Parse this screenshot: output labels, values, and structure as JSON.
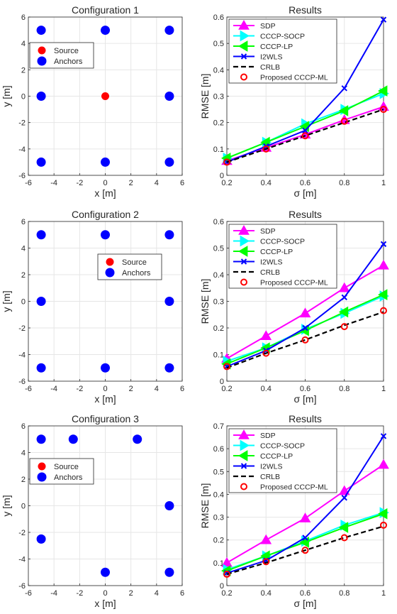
{
  "colors": {
    "source": "#ff0000",
    "anchors": "#0000ff",
    "SDP": "#ff00ff",
    "CCCP-SOCP": "#00ffff",
    "CCCP-LP": "#00ff00",
    "I2WLS": "#0000ff",
    "CRLB": "#000000",
    "Proposed CCCP-ML": "#ff0000"
  },
  "chart_data": [
    {
      "type": "scatter",
      "title": "Configuration 1",
      "xlabel": "x [m]",
      "ylabel": "y [m]",
      "xlim": [
        -6,
        6
      ],
      "ylim": [
        -6,
        6
      ],
      "xticks": [
        "-6",
        "-4",
        "-2",
        "0",
        "2",
        "4",
        "6"
      ],
      "yticks": [
        "-6",
        "-4",
        "-2",
        "0",
        "2",
        "4",
        "6"
      ],
      "grid": true,
      "legend_position": "upper-left",
      "legend": [
        "Source",
        "Anchors"
      ],
      "source": [
        [
          0,
          0
        ]
      ],
      "anchors": [
        [
          -5,
          5
        ],
        [
          0,
          5
        ],
        [
          5,
          5
        ],
        [
          -5,
          0
        ],
        [
          5,
          0
        ],
        [
          -5,
          -5
        ],
        [
          0,
          -5
        ],
        [
          5,
          -5
        ]
      ]
    },
    {
      "type": "line",
      "title": "Results",
      "xlabel": "σ [m]",
      "ylabel": "RMSE [m]",
      "xlim": [
        0.2,
        1
      ],
      "ylim": [
        0,
        0.6
      ],
      "xticks": [
        "0.2",
        "0.4",
        "0.6",
        "0.8",
        "1"
      ],
      "yticks": [
        "0",
        "0.1",
        "0.2",
        "0.3",
        "0.4",
        "0.5",
        "0.6"
      ],
      "grid": true,
      "legend_position": "upper-left",
      "x": [
        0.2,
        0.4,
        0.6,
        0.8,
        1.0
      ],
      "series": [
        {
          "name": "SDP",
          "values": [
            0.055,
            0.105,
            0.155,
            0.21,
            0.26
          ]
        },
        {
          "name": "CCCP-SOCP",
          "values": [
            0.065,
            0.125,
            0.195,
            0.25,
            0.31
          ]
        },
        {
          "name": "CCCP-LP",
          "values": [
            0.065,
            0.125,
            0.185,
            0.245,
            0.32
          ]
        },
        {
          "name": "I2WLS",
          "values": [
            0.05,
            0.11,
            0.17,
            0.33,
            0.59
          ]
        },
        {
          "name": "CRLB",
          "values": [
            0.05,
            0.1,
            0.15,
            0.2,
            0.25
          ]
        },
        {
          "name": "Proposed CCCP-ML",
          "values": [
            0.05,
            0.1,
            0.15,
            0.205,
            0.25
          ]
        }
      ]
    },
    {
      "type": "scatter",
      "title": "Configuration 2",
      "xlabel": "x [m]",
      "ylabel": "y [m]",
      "xlim": [
        -6,
        6
      ],
      "ylim": [
        -6,
        6
      ],
      "xticks": [
        "-6",
        "-4",
        "-2",
        "0",
        "2",
        "4",
        "6"
      ],
      "yticks": [
        "-6",
        "-4",
        "-2",
        "0",
        "2",
        "4",
        "6"
      ],
      "grid": true,
      "legend_position": "upper-center",
      "legend": [
        "Source",
        "Anchors"
      ],
      "source": [
        [
          2,
          2
        ]
      ],
      "anchors": [
        [
          -5,
          5
        ],
        [
          0,
          5
        ],
        [
          5,
          5
        ],
        [
          -5,
          0
        ],
        [
          5,
          0
        ],
        [
          -5,
          -5
        ],
        [
          0,
          -5
        ],
        [
          5,
          -5
        ]
      ]
    },
    {
      "type": "line",
      "title": "Results",
      "xlabel": "σ [m]",
      "ylabel": "RMSE [m]",
      "xlim": [
        0.2,
        1
      ],
      "ylim": [
        0,
        0.6
      ],
      "xticks": [
        "0.2",
        "0.4",
        "0.6",
        "0.8",
        "1"
      ],
      "yticks": [
        "0",
        "0.1",
        "0.2",
        "0.3",
        "0.4",
        "0.5",
        "0.6"
      ],
      "grid": true,
      "legend_position": "upper-left",
      "x": [
        0.2,
        0.4,
        0.6,
        0.8,
        1.0
      ],
      "series": [
        {
          "name": "SDP",
          "values": [
            0.085,
            0.17,
            0.255,
            0.35,
            0.435
          ]
        },
        {
          "name": "CCCP-SOCP",
          "values": [
            0.075,
            0.125,
            0.195,
            0.255,
            0.32
          ]
        },
        {
          "name": "CCCP-LP",
          "values": [
            0.065,
            0.125,
            0.19,
            0.26,
            0.325
          ]
        },
        {
          "name": "I2WLS",
          "values": [
            0.055,
            0.115,
            0.2,
            0.315,
            0.515
          ]
        },
        {
          "name": "CRLB",
          "values": [
            0.05,
            0.105,
            0.155,
            0.21,
            0.26
          ]
        },
        {
          "name": "Proposed CCCP-ML",
          "values": [
            0.055,
            0.105,
            0.155,
            0.205,
            0.265
          ]
        }
      ]
    },
    {
      "type": "scatter",
      "title": "Configuration 3",
      "xlabel": "x [m]",
      "ylabel": "y [m]",
      "xlim": [
        -6,
        6
      ],
      "ylim": [
        -6,
        6
      ],
      "xticks": [
        "-6",
        "-4",
        "-2",
        "0",
        "2",
        "4",
        "6"
      ],
      "yticks": [
        "-6",
        "-4",
        "-2",
        "0",
        "2",
        "4",
        "6"
      ],
      "grid": true,
      "legend_position": "lower-left",
      "legend": [
        "Source",
        "Anchors"
      ],
      "source": [
        [
          -2,
          2
        ]
      ],
      "anchors": [
        [
          -5,
          5
        ],
        [
          -2.5,
          5
        ],
        [
          2.5,
          5
        ],
        [
          -5,
          2.5
        ],
        [
          5,
          0
        ],
        [
          -5,
          -2.5
        ],
        [
          0,
          -5
        ],
        [
          5,
          -5
        ]
      ]
    },
    {
      "type": "line",
      "title": "Results",
      "xlabel": "σ [m]",
      "ylabel": "RMSE [m]",
      "xlim": [
        0.2,
        1
      ],
      "ylim": [
        0,
        0.7
      ],
      "xticks": [
        "0.2",
        "0.4",
        "0.6",
        "0.8",
        "1"
      ],
      "yticks": [
        "0",
        "0.1",
        "0.2",
        "0.3",
        "0.4",
        "0.5",
        "0.6",
        "0.7"
      ],
      "grid": true,
      "legend_position": "upper-left",
      "x": [
        0.2,
        0.4,
        0.6,
        0.8,
        1.0
      ],
      "series": [
        {
          "name": "SDP",
          "values": [
            0.1,
            0.2,
            0.295,
            0.415,
            0.53
          ]
        },
        {
          "name": "CCCP-SOCP",
          "values": [
            0.07,
            0.13,
            0.195,
            0.265,
            0.32
          ]
        },
        {
          "name": "CCCP-LP",
          "values": [
            0.065,
            0.13,
            0.19,
            0.255,
            0.315
          ]
        },
        {
          "name": "I2WLS",
          "values": [
            0.055,
            0.11,
            0.21,
            0.385,
            0.655
          ]
        },
        {
          "name": "CRLB",
          "values": [
            0.05,
            0.1,
            0.155,
            0.21,
            0.26
          ]
        },
        {
          "name": "Proposed CCCP-ML",
          "values": [
            0.05,
            0.105,
            0.155,
            0.21,
            0.265
          ]
        }
      ]
    }
  ]
}
